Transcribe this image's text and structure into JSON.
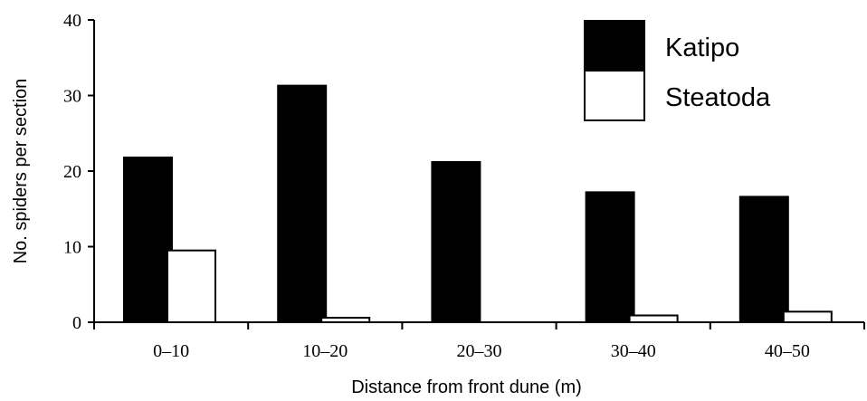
{
  "chart_data": {
    "type": "bar",
    "title": "",
    "xlabel": "Distance from front dune (m)",
    "ylabel": "No. spiders per section",
    "categories": [
      "0–10",
      "10–20",
      "20–30",
      "30–40",
      "40–50"
    ],
    "series": [
      {
        "name": "Katipo",
        "values": [
          21.8,
          31.3,
          21.2,
          17.2,
          16.6
        ],
        "color": "#000000"
      },
      {
        "name": "Steatoda",
        "values": [
          9.5,
          0.6,
          0.0,
          0.9,
          1.4
        ],
        "color": "#ffffff"
      }
    ],
    "ylim": [
      0,
      40
    ],
    "yticks": [
      "0",
      "10",
      "20",
      "30",
      "40"
    ],
    "legend_position": "top-right",
    "grid": false
  }
}
